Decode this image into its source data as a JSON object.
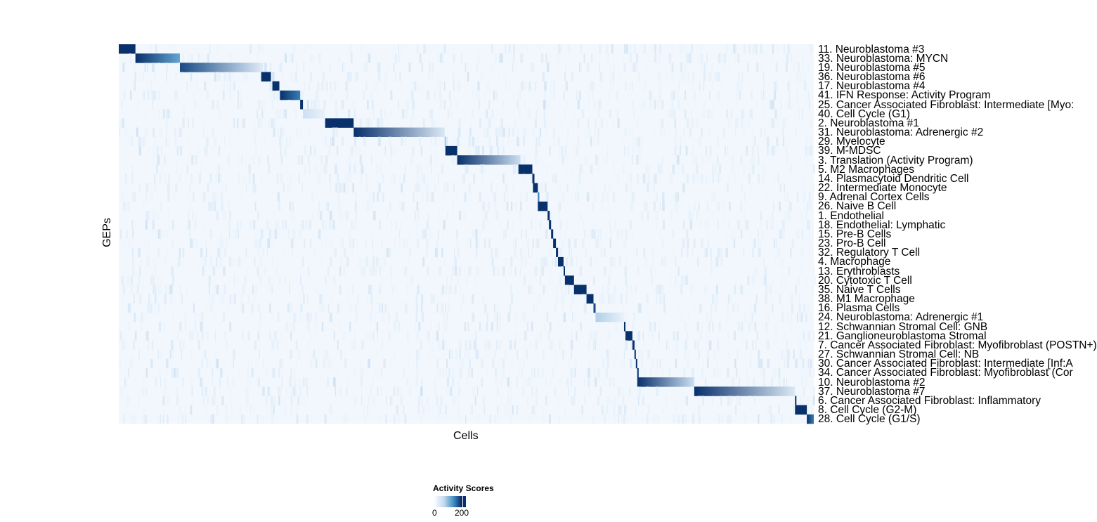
{
  "chart_data": {
    "type": "heatmap",
    "title": "",
    "xlabel": "Cells",
    "ylabel": "GEPs",
    "color_scale": {
      "title": "Activity Scores",
      "low_color": "#f7fbff",
      "high_color": "#08306b",
      "ticks": [
        0,
        200
      ],
      "range": [
        0,
        230
      ]
    },
    "background_value": 8,
    "rows": [
      {
        "label": "11. Neuroblastoma #3",
        "block_cells_pct": [
          0,
          2.4
        ],
        "values": [
          230,
          200
        ]
      },
      {
        "label": "33. Neuroblastoma: MYCN",
        "block_cells_pct": [
          2.4,
          8.8
        ],
        "values": [
          220,
          120
        ]
      },
      {
        "label": "19. Neuroblastoma #5",
        "block_cells_pct": [
          8.8,
          20.5
        ],
        "values": [
          180,
          40
        ]
      },
      {
        "label": "36. Neuroblastoma #6",
        "block_cells_pct": [
          20.5,
          21.9
        ],
        "values": [
          220,
          220
        ]
      },
      {
        "label": "17. Neuroblastoma #4",
        "block_cells_pct": [
          22.1,
          23.1
        ],
        "values": [
          200,
          200
        ]
      },
      {
        "label": "41. IFN Response: Activity Program",
        "block_cells_pct": [
          23.2,
          26.1
        ],
        "values": [
          210,
          150
        ]
      },
      {
        "label": "25. Cancer Associated Fibroblast: Intermediate [Myo:",
        "block_cells_pct": [
          26.1,
          26.5
        ],
        "values": [
          220,
          220
        ]
      },
      {
        "label": "40. Cell Cycle (G1)",
        "block_cells_pct": [
          26.5,
          29.7
        ],
        "values": [
          60,
          20
        ]
      },
      {
        "label": "2. Neuroblastoma #1",
        "block_cells_pct": [
          29.7,
          33.8
        ],
        "values": [
          230,
          200
        ]
      },
      {
        "label": "31. Neuroblastoma: Adrenergic #2",
        "block_cells_pct": [
          33.8,
          46.9
        ],
        "values": [
          230,
          40
        ]
      },
      {
        "label": "29. Myelocyte",
        "block_cells_pct": [
          46.9,
          47.0
        ],
        "values": [
          100,
          100
        ]
      },
      {
        "label": "39. M-MDSC",
        "block_cells_pct": [
          47.0,
          48.7
        ],
        "values": [
          220,
          220
        ]
      },
      {
        "label": "3. Translation (Activity Program)",
        "block_cells_pct": [
          48.7,
          57.8
        ],
        "values": [
          230,
          60
        ]
      },
      {
        "label": "5. M2 Macrophages",
        "block_cells_pct": [
          57.5,
          59.5
        ],
        "values": [
          230,
          230
        ]
      },
      {
        "label": "14. Plasmacytoid Dendritic Cell",
        "block_cells_pct": [
          59.5,
          59.8
        ],
        "values": [
          200,
          200
        ]
      },
      {
        "label": "22. Intermediate Monocyte",
        "block_cells_pct": [
          59.6,
          60.3
        ],
        "values": [
          220,
          220
        ]
      },
      {
        "label": "9. Adrenal Cortex Cells",
        "block_cells_pct": [
          60.3,
          60.5
        ],
        "values": [
          150,
          150
        ]
      },
      {
        "label": "26. Naive B Cell",
        "block_cells_pct": [
          60.3,
          61.7
        ],
        "values": [
          230,
          230
        ]
      },
      {
        "label": "1. Endothelial",
        "block_cells_pct": [
          61.7,
          62.0
        ],
        "values": [
          220,
          220
        ]
      },
      {
        "label": "18. Endothelial: Lymphatic",
        "block_cells_pct": [
          61.9,
          62.2
        ],
        "values": [
          200,
          200
        ]
      },
      {
        "label": "15. Pre-B Cells",
        "block_cells_pct": [
          62.2,
          62.5
        ],
        "values": [
          220,
          220
        ]
      },
      {
        "label": "23. Pro-B Cell",
        "block_cells_pct": [
          62.5,
          62.9
        ],
        "values": [
          200,
          200
        ]
      },
      {
        "label": "32. Regulatory T Cell",
        "block_cells_pct": [
          62.9,
          63.2
        ],
        "values": [
          200,
          200
        ]
      },
      {
        "label": "4. Macrophage",
        "block_cells_pct": [
          63.2,
          64.0
        ],
        "values": [
          220,
          220
        ]
      },
      {
        "label": "13. Erythroblasts",
        "block_cells_pct": [
          64.0,
          64.2
        ],
        "values": [
          200,
          200
        ]
      },
      {
        "label": "20. Cytotoxic T Cell",
        "block_cells_pct": [
          64.2,
          65.5
        ],
        "values": [
          230,
          230
        ]
      },
      {
        "label": "35. Naive T Cells",
        "block_cells_pct": [
          65.5,
          67.3
        ],
        "values": [
          230,
          230
        ]
      },
      {
        "label": "38. M1 Macrophage",
        "block_cells_pct": [
          67.3,
          68.3
        ],
        "values": [
          220,
          220
        ]
      },
      {
        "label": "16. Plasma Cells",
        "block_cells_pct": [
          68.3,
          68.6
        ],
        "values": [
          180,
          180
        ]
      },
      {
        "label": "24. Neuroblastoma: Adrenergic #1",
        "block_cells_pct": [
          68.6,
          72.7
        ],
        "values": [
          80,
          20
        ]
      },
      {
        "label": "12. Schwannian Stromal Cell: GNB",
        "block_cells_pct": [
          72.7,
          72.9
        ],
        "values": [
          220,
          220
        ]
      },
      {
        "label": "21. Ganglioneuroblastoma Stromal",
        "block_cells_pct": [
          72.9,
          73.9
        ],
        "values": [
          230,
          230
        ]
      },
      {
        "label": "7. Cancer Associated Fibroblast: Myofibroblast (POSTN+)",
        "block_cells_pct": [
          73.9,
          74.2
        ],
        "values": [
          220,
          220
        ]
      },
      {
        "label": "27. Schwannian Stromal Cell: NB",
        "block_cells_pct": [
          74.2,
          74.4
        ],
        "values": [
          220,
          220
        ]
      },
      {
        "label": "30. Cancer Associated Fibroblast: Intermediate [Inf:A",
        "block_cells_pct": [
          74.4,
          74.6
        ],
        "values": [
          220,
          220
        ]
      },
      {
        "label": "34. Cancer Associated Fibroblast: Myofibroblast (Cor",
        "block_cells_pct": [
          74.6,
          74.8
        ],
        "values": [
          200,
          200
        ]
      },
      {
        "label": "10. Neuroblastoma #2",
        "block_cells_pct": [
          74.6,
          82.8
        ],
        "values": [
          230,
          60
        ]
      },
      {
        "label": "37. Neuroblastoma #7",
        "block_cells_pct": [
          82.8,
          97.3
        ],
        "values": [
          230,
          40
        ]
      },
      {
        "label": "6. Cancer Associated Fibroblast: Inflammatory",
        "block_cells_pct": [
          97.3,
          97.5
        ],
        "values": [
          200,
          200
        ]
      },
      {
        "label": "8. Cell Cycle (G2-M)",
        "block_cells_pct": [
          97.3,
          99.0
        ],
        "values": [
          230,
          200
        ]
      },
      {
        "label": "28. Cell Cycle (G1/S)",
        "block_cells_pct": [
          99.0,
          100
        ],
        "values": [
          230,
          150
        ]
      }
    ]
  }
}
